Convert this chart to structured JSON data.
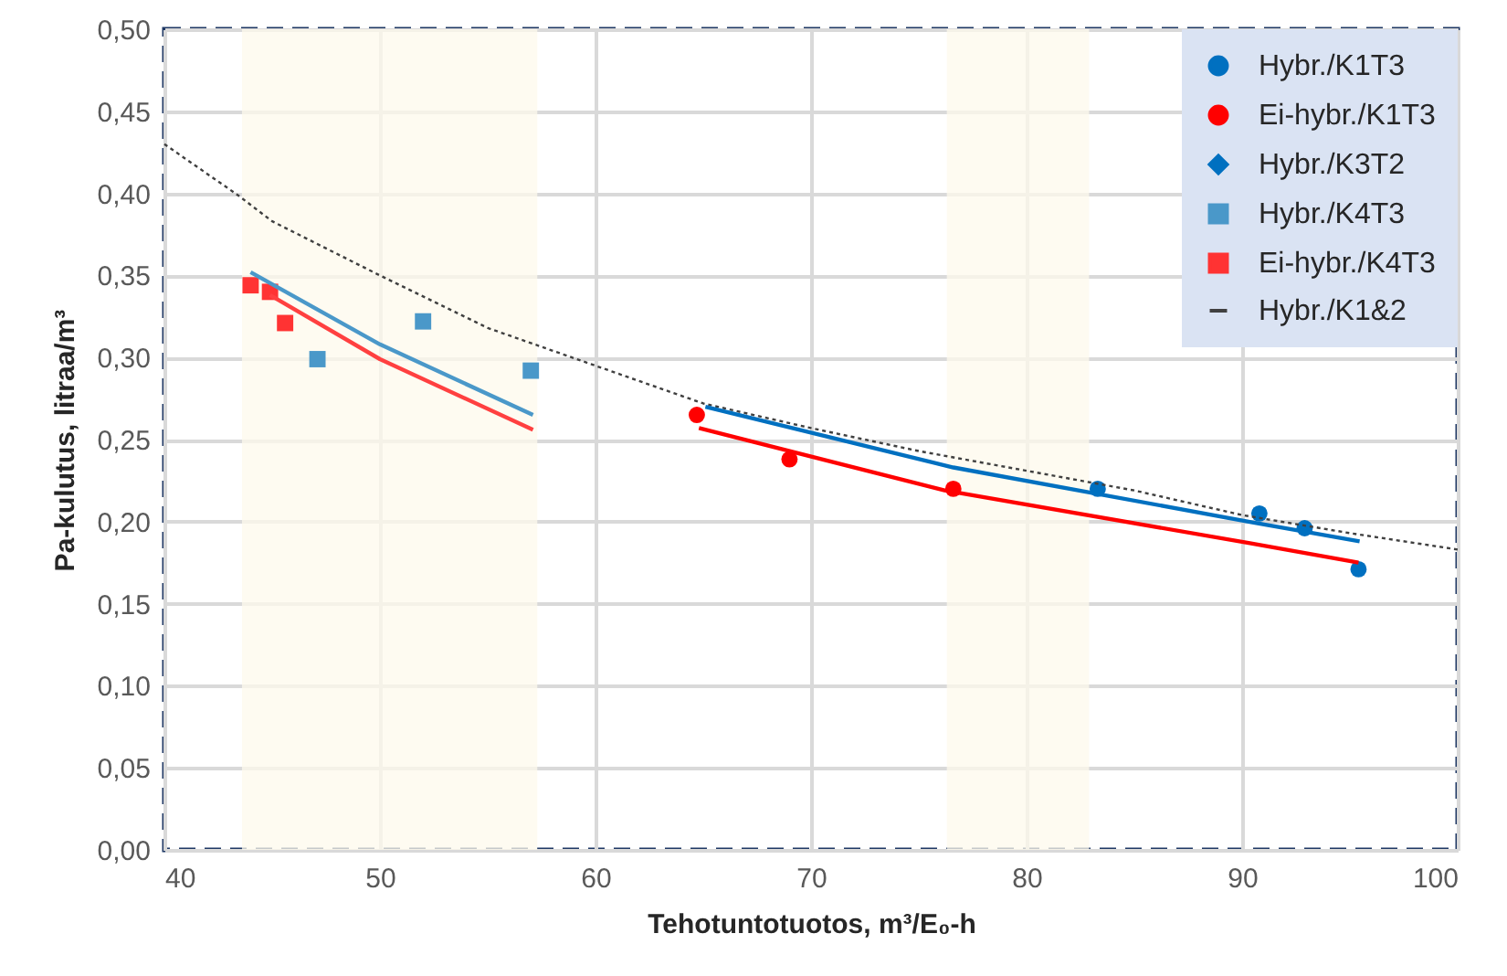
{
  "chart_data": {
    "type": "scatter",
    "xlabel": "Tehotuntotuotos,  m³/E₀-h",
    "ylabel": "Pa-kulutus, litraa/m³",
    "xlim": [
      40,
      100
    ],
    "xticks": [
      40,
      50,
      60,
      70,
      80,
      90,
      100
    ],
    "ylim": [
      0,
      0.5
    ],
    "yticks": [
      {
        "value": 0,
        "label": "0,00"
      },
      {
        "value": 0.05,
        "label": "0,05"
      },
      {
        "value": 0.1,
        "label": "0,10"
      },
      {
        "value": 0.15,
        "label": "0,15"
      },
      {
        "value": 0.2,
        "label": "0,20"
      },
      {
        "value": 0.25,
        "label": "0,25"
      },
      {
        "value": 0.3,
        "label": "0,30"
      },
      {
        "value": 0.35,
        "label": "0,35"
      },
      {
        "value": 0.4,
        "label": "0,40"
      },
      {
        "value": 0.45,
        "label": "0,45"
      },
      {
        "value": 0.5,
        "label": "0,50"
      }
    ],
    "grid": true,
    "legend": "top right",
    "bands": [
      {
        "axis": "x",
        "from": 43.6,
        "to": 57.3,
        "color": "#fef9ec"
      },
      {
        "axis": "x",
        "from": 76.3,
        "to": 82.9,
        "color": "#fef9ec"
      }
    ],
    "series": [
      {
        "name": "Hybr./K1T3",
        "marker": "circle",
        "color": "#0070c0",
        "x": [
          83.3,
          90.8,
          92.9,
          95.4
        ],
        "values": [
          0.22,
          0.205,
          0.196,
          0.171
        ]
      },
      {
        "name": "Ei-hybr./K1T3",
        "marker": "circle",
        "color": "#ff0000",
        "x": [
          64.7,
          69.0,
          76.6
        ],
        "values": [
          0.265,
          0.238,
          0.22
        ]
      },
      {
        "name": "Hybr./K3T2",
        "marker": "diamond",
        "color": "#0070c0"
      },
      {
        "name": "Hybr./K4T3",
        "marker": "square",
        "color": "#4a98c9",
        "x": [
          47.1,
          52.0,
          57.0
        ],
        "values": [
          0.299,
          0.322,
          0.292
        ]
      },
      {
        "name": "Ei-hybr./K4T3",
        "marker": "square",
        "color": "#ff3333",
        "x": [
          44.0,
          44.9,
          45.6
        ],
        "values": [
          0.344,
          0.34,
          0.321
        ]
      },
      {
        "name": "Hybr./K1&2",
        "type": "line",
        "line_style": "dotted",
        "color": "#404040",
        "x": [
          40,
          43.4,
          45,
          50,
          55,
          60,
          65,
          70,
          75,
          80,
          85,
          90,
          95,
          100
        ],
        "values": [
          0.43,
          0.399,
          0.383,
          0.35,
          0.318,
          0.295,
          0.272,
          0.257,
          0.243,
          0.231,
          0.219,
          0.204,
          0.193,
          0.183
        ]
      },
      {
        "type": "line",
        "line_style": "solid",
        "color": "#4a98c9",
        "x": [
          44.0,
          50.0,
          57.1
        ],
        "values": [
          0.352,
          0.308,
          0.265
        ]
      },
      {
        "type": "line",
        "line_style": "solid",
        "color": "#ff4040",
        "x": [
          44.9,
          50.0,
          57.1
        ],
        "values": [
          0.338,
          0.299,
          0.256
        ]
      },
      {
        "type": "line",
        "line_style": "solid",
        "color": "#0070c0",
        "x": [
          65.1,
          76.6,
          90.3,
          95.45
        ],
        "values": [
          0.27,
          0.233,
          0.2,
          0.188
        ]
      },
      {
        "type": "line",
        "line_style": "solid",
        "color": "#ff0000",
        "x": [
          64.8,
          76.2,
          90.3,
          95.4
        ],
        "values": [
          0.257,
          0.219,
          0.187,
          0.175
        ]
      }
    ]
  }
}
